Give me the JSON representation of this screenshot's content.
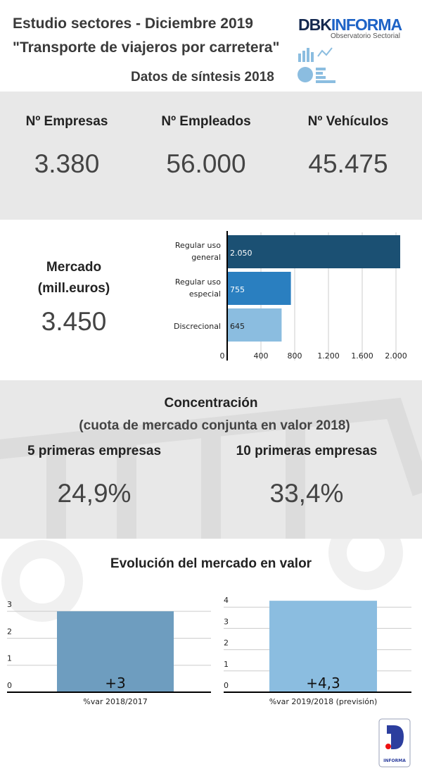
{
  "header": {
    "title": "Estudio sectores - Diciembre 2019",
    "subtitle": "\"Transporte de viajeros por carretera\"",
    "synth": "Datos de síntesis 2018",
    "logo_text": "DBKINFORMA",
    "logo_sub": "Observatorio Sectorial"
  },
  "kpis": [
    {
      "label": "Nº Empresas",
      "value": "3.380"
    },
    {
      "label": "Nº Empleados",
      "value": "56.000"
    },
    {
      "label": "Nº Vehículos",
      "value": "45.475"
    }
  ],
  "market": {
    "label1": "Mercado",
    "label2": "(mill.euros)",
    "value": "3.450"
  },
  "concentration": {
    "title": "Concentración",
    "subtitle": "(cuota de mercado conjunta en valor 2018)",
    "items": [
      {
        "label": "5 primeras empresas",
        "value": "24,9%"
      },
      {
        "label": "10 primeras empresas",
        "value": "33,4%"
      }
    ]
  },
  "evolution_title": "Evolución del mercado en valor",
  "footer_logo": {
    "text": "INFORMA"
  },
  "colors": {
    "dark": "#1b5073",
    "mid": "#2a7fc0",
    "light": "#8bbde0",
    "evo1": "#6e9dbf",
    "evo2": "#8bbde0",
    "band": "#e8e8e8"
  },
  "chart_data": [
    {
      "type": "bar",
      "orientation": "horizontal",
      "categories": [
        "Regular uso general",
        "Regular uso especial",
        "Discrecional"
      ],
      "values": [
        2050,
        755,
        645
      ],
      "data_labels": [
        "2.050",
        "755",
        "645"
      ],
      "xticks": [
        "0",
        "400",
        "800",
        "1.200",
        "1.600",
        "2.000"
      ],
      "xlim": [
        0,
        2050
      ],
      "grid": true
    },
    {
      "type": "bar",
      "categories": [
        "%var 2018/2017"
      ],
      "values": [
        3
      ],
      "data_labels": [
        "+3"
      ],
      "yticks": [
        "0",
        "1",
        "2",
        "3"
      ],
      "ylim": [
        0,
        3
      ],
      "grid": true
    },
    {
      "type": "bar",
      "categories": [
        "%var 2019/2018 (previsión)"
      ],
      "values": [
        4.3
      ],
      "data_labels": [
        "+4,3"
      ],
      "yticks": [
        "0",
        "1",
        "2",
        "3",
        "4"
      ],
      "ylim": [
        0,
        4.3
      ],
      "grid": true
    }
  ]
}
